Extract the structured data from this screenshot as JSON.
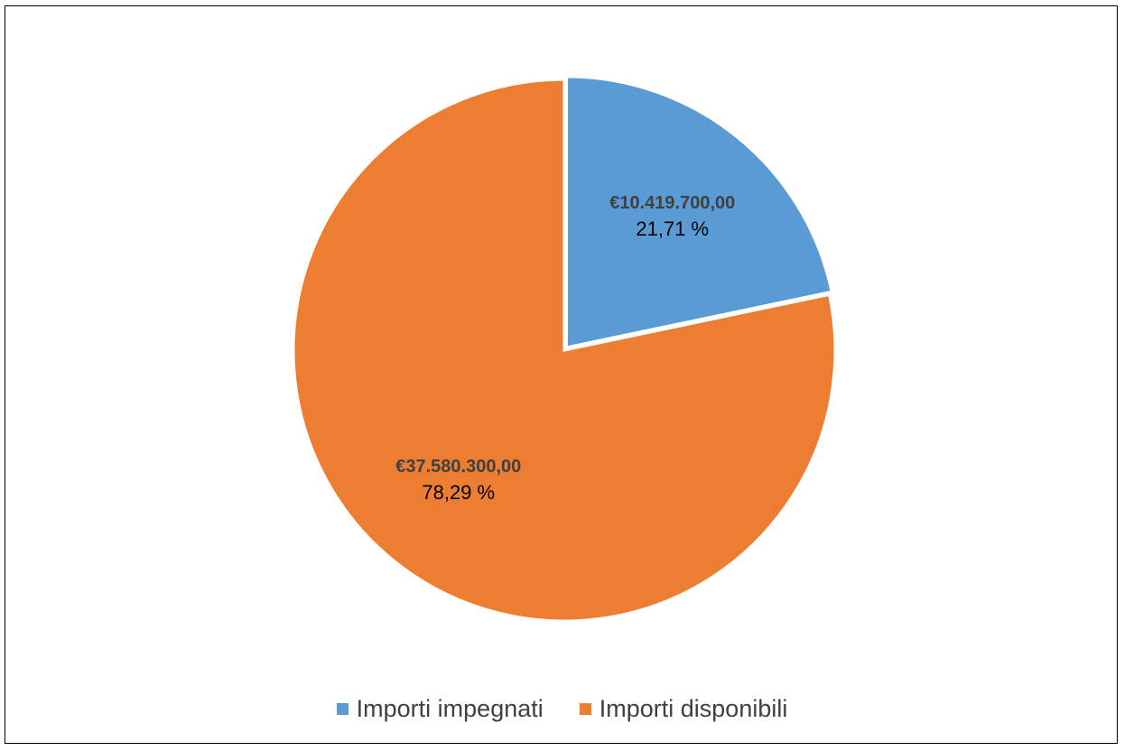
{
  "chart_data": {
    "type": "pie",
    "title": "",
    "legend_position": "bottom",
    "slices": [
      {
        "name": "Importi impegnati",
        "value": 10419700.0,
        "value_label": "€10.419.700,00",
        "percent_label": "21,71 %",
        "color": "#5B9BD5"
      },
      {
        "name": "Importi disponibili",
        "value": 37580300.0,
        "value_label": "€37.580.300,00",
        "percent_label": "78,29 %",
        "color": "#ED7D31"
      }
    ]
  }
}
